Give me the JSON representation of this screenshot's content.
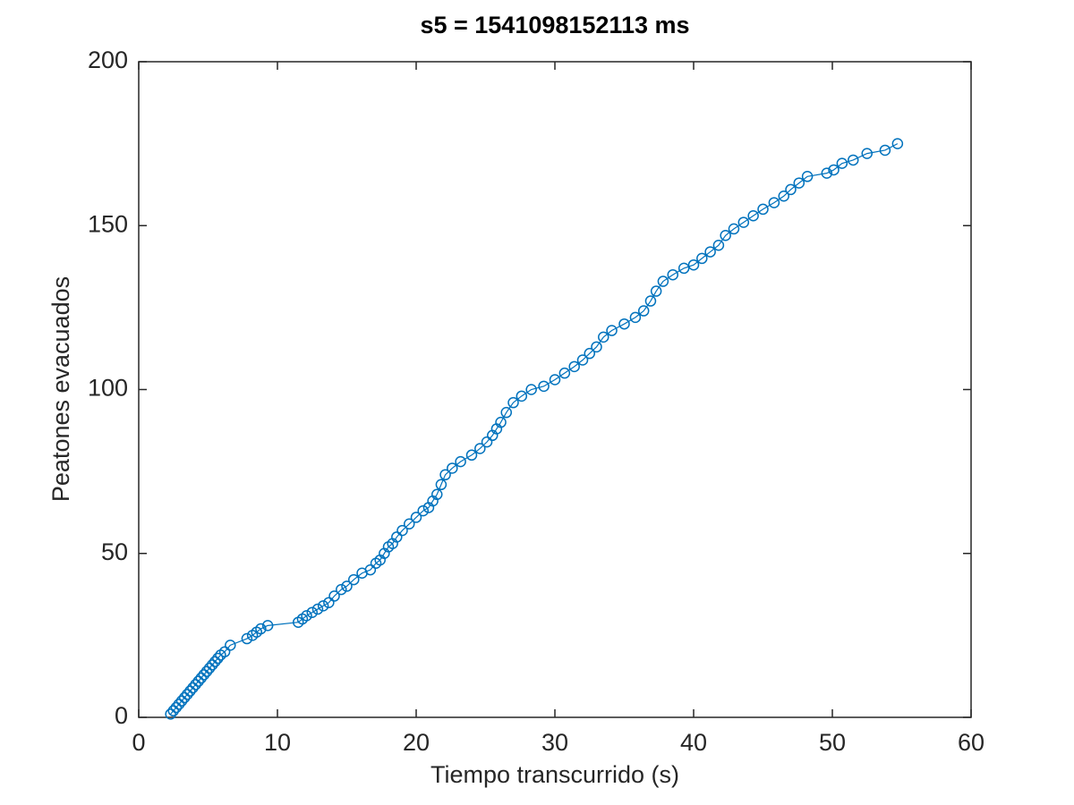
{
  "chart_data": {
    "type": "line",
    "title": "s5 = 1541098152113 ms",
    "xlabel": "Tiempo transcurrido (s)",
    "ylabel": "Peatones evacuados",
    "color": "#0072bd",
    "marker": "o",
    "x": [
      2.3,
      2.5,
      2.7,
      2.9,
      3.1,
      3.3,
      3.5,
      3.7,
      3.9,
      4.1,
      4.3,
      4.5,
      4.7,
      4.9,
      5.1,
      5.3,
      5.5,
      5.7,
      5.9,
      6.2,
      6.6,
      7.8,
      8.2,
      8.5,
      8.8,
      9.3,
      11.5,
      11.8,
      12.1,
      12.5,
      12.9,
      13.3,
      13.7,
      14.1,
      14.6,
      15.0,
      15.5,
      16.1,
      16.7,
      17.1,
      17.4,
      17.7,
      18.0,
      18.3,
      18.6,
      19.0,
      19.5,
      20.0,
      20.5,
      20.9,
      21.2,
      21.5,
      21.8,
      22.1,
      22.6,
      23.2,
      24.0,
      24.6,
      25.1,
      25.5,
      25.8,
      26.1,
      26.5,
      27.0,
      27.6,
      28.3,
      29.2,
      30.0,
      30.7,
      31.4,
      32.0,
      32.5,
      33.0,
      33.5,
      34.1,
      35.0,
      35.8,
      36.4,
      36.9,
      37.3,
      37.8,
      38.5,
      39.3,
      40.0,
      40.6,
      41.2,
      41.8,
      42.3,
      42.9,
      43.6,
      44.3,
      45.0,
      45.8,
      46.5,
      47.0,
      47.6,
      48.2,
      49.6,
      50.1,
      50.7,
      51.5,
      52.5,
      53.8,
      54.7
    ],
    "values": [
      1,
      2,
      3,
      4,
      5,
      6,
      7,
      8,
      9,
      10,
      11,
      12,
      13,
      14,
      15,
      16,
      17,
      18,
      19,
      20,
      22,
      24,
      25,
      26,
      27,
      28,
      29,
      30,
      31,
      32,
      33,
      34,
      35,
      37,
      39,
      40,
      42,
      44,
      45,
      47,
      48,
      50,
      52,
      53,
      55,
      57,
      59,
      61,
      63,
      64,
      66,
      68,
      71,
      74,
      76,
      78,
      80,
      82,
      84,
      86,
      88,
      90,
      93,
      96,
      98,
      100,
      101,
      103,
      105,
      107,
      109,
      111,
      113,
      116,
      118,
      120,
      122,
      124,
      127,
      130,
      133,
      135,
      137,
      138,
      140,
      142,
      144,
      147,
      149,
      151,
      153,
      155,
      157,
      159,
      161,
      163,
      165,
      166,
      167,
      169,
      170,
      172,
      173,
      175
    ],
    "xlim": [
      0,
      60
    ],
    "xticks": [
      0,
      10,
      20,
      30,
      40,
      50,
      60
    ],
    "ylim": [
      0,
      200
    ],
    "yticks": [
      0,
      50,
      100,
      150,
      200
    ]
  }
}
